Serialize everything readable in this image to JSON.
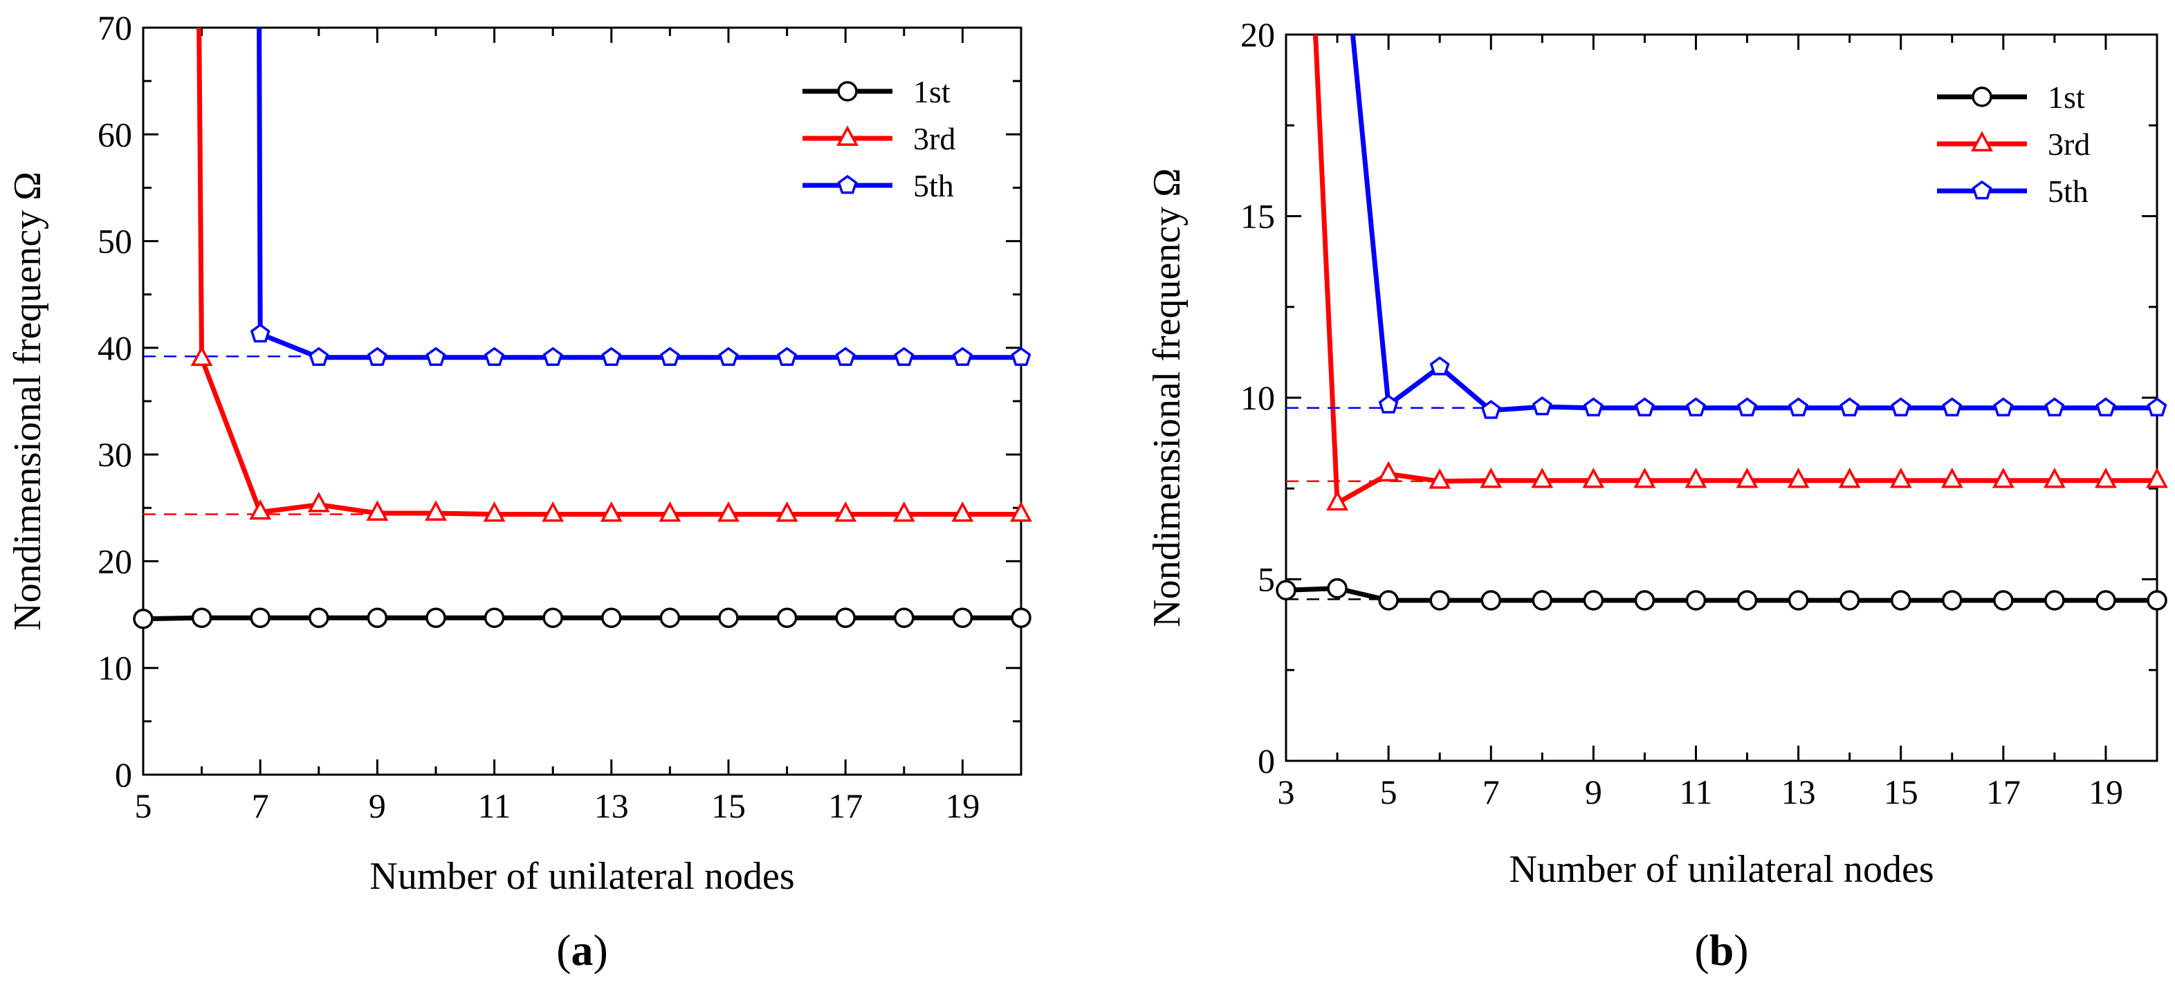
{
  "chart_data": [
    {
      "type": "line",
      "panel": "(a)",
      "panel_letter": "a",
      "xlabel": "Number of unilateral nodes",
      "ylabel": "Nondimensional frequency Ω",
      "xlim": [
        5,
        20
      ],
      "ylim": [
        0,
        70
      ],
      "xticks": [
        5,
        7,
        9,
        11,
        13,
        15,
        17,
        19
      ],
      "yticks": [
        0,
        10,
        20,
        30,
        40,
        50,
        60,
        70
      ],
      "legend_position": "top-right",
      "series": [
        {
          "name": "1st",
          "color": "#000000",
          "marker": "circle",
          "x": [
            5,
            6,
            7,
            8,
            9,
            10,
            11,
            12,
            13,
            14,
            15,
            16,
            17,
            18,
            19,
            20
          ],
          "y": [
            14.6,
            14.7,
            14.7,
            14.7,
            14.7,
            14.7,
            14.7,
            14.7,
            14.7,
            14.7,
            14.7,
            14.7,
            14.7,
            14.7,
            14.7,
            14.7
          ],
          "reference": 14.6
        },
        {
          "name": "3rd",
          "color": "#ff0000",
          "marker": "triangle",
          "x": [
            5,
            6,
            7,
            8,
            9,
            10,
            11,
            12,
            13,
            14,
            15,
            16,
            17,
            18,
            19,
            20
          ],
          "y": [
            null,
            39.0,
            24.6,
            25.3,
            24.5,
            24.5,
            24.4,
            24.4,
            24.4,
            24.4,
            24.4,
            24.4,
            24.4,
            24.4,
            24.4,
            24.4
          ],
          "offscale_from": 5.95,
          "reference": 24.4
        },
        {
          "name": "5th",
          "color": "#0000ff",
          "marker": "pentagon",
          "x": [
            7,
            8,
            9,
            10,
            11,
            12,
            13,
            14,
            15,
            16,
            17,
            18,
            19,
            20
          ],
          "y": [
            41.3,
            39.1,
            39.1,
            39.1,
            39.1,
            39.1,
            39.1,
            39.1,
            39.1,
            39.1,
            39.1,
            39.1,
            39.1,
            39.1
          ],
          "offscale_from": 6.98,
          "reference": 39.2
        }
      ]
    },
    {
      "type": "line",
      "panel": "(b)",
      "panel_letter": "b",
      "xlabel": "Number of unilateral nodes",
      "ylabel": "Nondimensional frequency Ω",
      "xlim": [
        3,
        20
      ],
      "ylim": [
        0,
        20
      ],
      "xticks": [
        3,
        5,
        7,
        9,
        11,
        13,
        15,
        17,
        19
      ],
      "yticks": [
        0,
        5,
        10,
        15,
        20
      ],
      "legend_position": "top-right",
      "series": [
        {
          "name": "1st",
          "color": "#000000",
          "marker": "circle",
          "x": [
            3,
            4,
            5,
            6,
            7,
            8,
            9,
            10,
            11,
            12,
            13,
            14,
            15,
            16,
            17,
            18,
            19,
            20
          ],
          "y": [
            4.7,
            4.75,
            4.42,
            4.42,
            4.42,
            4.42,
            4.42,
            4.42,
            4.42,
            4.42,
            4.42,
            4.42,
            4.42,
            4.42,
            4.42,
            4.42,
            4.42,
            4.42
          ],
          "reference": 4.45
        },
        {
          "name": "3rd",
          "color": "#ff0000",
          "marker": "triangle",
          "x": [
            4,
            5,
            6,
            7,
            8,
            9,
            10,
            11,
            12,
            13,
            14,
            15,
            16,
            17,
            18,
            19,
            20
          ],
          "y": [
            7.1,
            7.9,
            7.7,
            7.72,
            7.72,
            7.72,
            7.72,
            7.72,
            7.72,
            7.72,
            7.72,
            7.72,
            7.72,
            7.72,
            7.72,
            7.72,
            7.72
          ],
          "offscale_from": 3.55,
          "reference": 7.7
        },
        {
          "name": "5th",
          "color": "#0000ff",
          "marker": "pentagon",
          "x": [
            5,
            6,
            7,
            8,
            9,
            10,
            11,
            12,
            13,
            14,
            15,
            16,
            17,
            18,
            19,
            20
          ],
          "y": [
            9.8,
            10.85,
            9.65,
            9.75,
            9.72,
            9.72,
            9.72,
            9.72,
            9.72,
            9.72,
            9.72,
            9.72,
            9.72,
            9.72,
            9.72,
            9.72
          ],
          "offscale_from": 4.25,
          "reference": 9.72
        }
      ]
    }
  ]
}
